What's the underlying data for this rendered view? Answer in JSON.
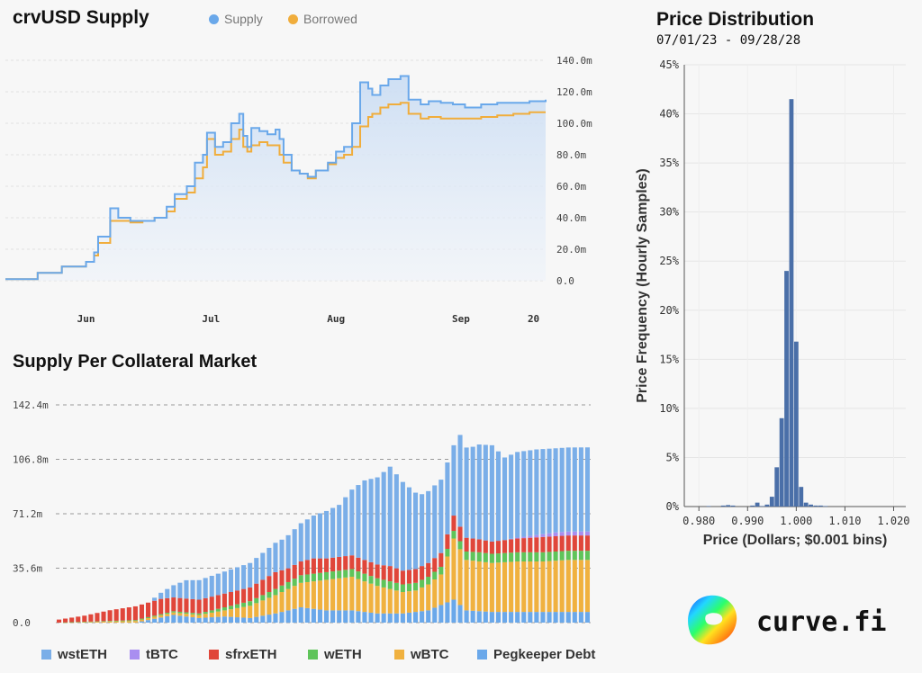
{
  "supply_chart": {
    "title": "crvUSD Supply",
    "legend": [
      {
        "name": "Supply",
        "color": "#6aa8ea"
      },
      {
        "name": "Borrowed",
        "color": "#f0ad3c"
      }
    ]
  },
  "market_chart": {
    "title": "Supply Per Collateral Market",
    "legend": [
      {
        "name": "wstETH",
        "color": "#7aaee8"
      },
      {
        "name": "tBTC",
        "color": "#a98ef0"
      },
      {
        "name": "sfrxETH",
        "color": "#e0463a"
      },
      {
        "name": "wETH",
        "color": "#5fc45a"
      },
      {
        "name": "wBTC",
        "color": "#f0b13f"
      },
      {
        "name": "Pegkeeper Debt",
        "color": "#6aa8ea"
      }
    ]
  },
  "price_chart": {
    "title": "Price Distribution",
    "subtitle": "07/01/23 - 09/28/28"
  },
  "brand": {
    "text": "curve.fi"
  },
  "chart_data": [
    {
      "type": "area",
      "title": "crvUSD Supply",
      "x_ticks": [
        "Jun",
        "Jul",
        "Aug",
        "Sep",
        "20"
      ],
      "y_ticks": [
        "0.0",
        "20.0m",
        "40.0m",
        "60.0m",
        "80.0m",
        "100.0m",
        "120.0m",
        "140.0m"
      ],
      "ylim": [
        0,
        140
      ],
      "y_unit": "millions",
      "x_days": [
        0,
        8,
        14,
        20,
        22,
        23,
        26,
        28,
        31,
        34,
        37,
        40,
        42,
        45,
        47,
        49,
        50,
        52,
        54,
        56,
        58,
        59,
        60,
        61,
        63,
        65,
        67,
        68,
        69,
        71,
        73,
        75,
        77,
        80,
        82,
        84,
        86,
        88,
        90,
        91,
        93,
        95,
        98,
        100,
        103,
        105,
        108,
        111,
        114,
        118,
        122,
        126,
        130,
        134
      ],
      "series": [
        {
          "name": "Supply",
          "values": [
            1,
            5,
            9,
            12,
            18,
            28,
            46,
            40,
            38,
            38,
            40,
            47,
            55,
            60,
            75,
            80,
            94,
            85,
            88,
            100,
            106,
            92,
            85,
            97,
            95,
            93,
            96,
            90,
            80,
            70,
            68,
            66,
            70,
            75,
            82,
            85,
            100,
            126,
            122,
            118,
            124,
            128,
            130,
            115,
            112,
            114,
            113,
            112,
            110,
            112,
            113,
            113,
            114,
            115
          ]
        },
        {
          "name": "Borrowed",
          "values": [
            1,
            5,
            9,
            12,
            16,
            24,
            38,
            38,
            37,
            38,
            40,
            44,
            52,
            56,
            65,
            72,
            90,
            80,
            82,
            90,
            96,
            85,
            82,
            86,
            88,
            86,
            86,
            80,
            75,
            70,
            68,
            65,
            70,
            74,
            78,
            80,
            85,
            98,
            104,
            106,
            110,
            112,
            113,
            106,
            103,
            104,
            103,
            103,
            103,
            104,
            105,
            106,
            107,
            107
          ]
        }
      ]
    },
    {
      "type": "bar",
      "stacked": true,
      "title": "Supply Per Collateral Market",
      "y_ticks": [
        "0.0",
        "35.6m",
        "71.2m",
        "106.8m",
        "142.4m"
      ],
      "ylim": [
        0,
        142.4
      ],
      "y_unit": "millions",
      "bar_count": 84,
      "series": [
        {
          "name": "wstETH",
          "key_days": [
            0,
            14,
            16,
            20,
            30,
            35,
            38,
            44,
            46,
            48,
            50,
            52,
            54,
            56,
            57,
            58,
            60,
            62,
            63,
            64,
            65,
            66,
            68,
            70,
            72,
            75,
            78,
            80,
            83
          ],
          "values": [
            0,
            0,
            4,
            12,
            16,
            20,
            25,
            34,
            43,
            52,
            57,
            65,
            58,
            50,
            47,
            47,
            48,
            46,
            60,
            59,
            60,
            62,
            63,
            54,
            56,
            56,
            55,
            55,
            55
          ]
        },
        {
          "name": "tBTC",
          "key_days": [
            0,
            70,
            74,
            78,
            83
          ],
          "values": [
            0,
            0,
            1.2,
            2.5,
            2.6
          ]
        },
        {
          "name": "sfrxETH",
          "key_days": [
            0,
            4,
            8,
            12,
            16,
            18,
            22,
            26,
            28,
            30,
            32,
            34,
            36,
            38,
            40,
            42,
            44,
            46,
            48,
            50,
            52,
            54,
            56,
            58,
            60,
            62,
            64,
            68,
            72,
            76,
            80,
            83
          ],
          "values": [
            2,
            4,
            7,
            9,
            10,
            9,
            9,
            9,
            9,
            9,
            10,
            11,
            9,
            9,
            10,
            9,
            9,
            9,
            9,
            9,
            10,
            9,
            9,
            9,
            9,
            10,
            9,
            8,
            9,
            10,
            10,
            10
          ]
        },
        {
          "name": "wETH",
          "key_days": [
            0,
            22,
            26,
            30,
            34,
            38,
            42,
            46,
            50,
            54,
            58,
            62,
            66,
            70,
            74,
            78,
            83
          ],
          "values": [
            0,
            1,
            2,
            3,
            4,
            5,
            5,
            5,
            5,
            5,
            5,
            5,
            6,
            6,
            6,
            6,
            6
          ]
        },
        {
          "name": "wBTC",
          "key_days": [
            0,
            22,
            26,
            30,
            34,
            38,
            42,
            46,
            50,
            52,
            54,
            56,
            58,
            60,
            62,
            64,
            68,
            72,
            76,
            80,
            83
          ],
          "values": [
            0,
            2,
            4,
            8,
            12,
            16,
            20,
            22,
            18,
            16,
            14,
            14,
            17,
            20,
            40,
            33,
            32,
            33,
            33,
            34,
            34
          ]
        },
        {
          "name": "Pegkeeper Debt",
          "key_days": [
            0,
            12,
            18,
            22,
            26,
            30,
            34,
            38,
            42,
            46,
            50,
            54,
            58,
            62,
            64,
            68,
            83
          ],
          "values": [
            0,
            0,
            5,
            3,
            4,
            3,
            6,
            10,
            8,
            8,
            6,
            6,
            8,
            15,
            8,
            7,
            7
          ]
        }
      ]
    },
    {
      "type": "bar",
      "title": "Price Distribution",
      "subtitle": "07/01/23 - 09/28/28",
      "xlabel": "Price (Dollars; $0.001 bins)",
      "ylabel": "Price Frequency (Hourly Samples)",
      "x_ticks": [
        "0.980",
        "0.990",
        "1.000",
        "1.010",
        "1.020"
      ],
      "y_ticks": [
        "0%",
        "5%",
        "10%",
        "15%",
        "20%",
        "25%",
        "30%",
        "35%",
        "40%",
        "45%"
      ],
      "xlim": [
        0.977,
        1.0225
      ],
      "ylim": [
        0,
        45
      ],
      "bin_width": 0.001,
      "bins": [
        0.982,
        0.985,
        0.986,
        0.987,
        0.991,
        0.992,
        0.993,
        0.994,
        0.995,
        0.996,
        0.997,
        0.998,
        0.999,
        1.0,
        1.001,
        1.002,
        1.003,
        1.004,
        1.005,
        1.006
      ],
      "values": [
        0.05,
        0.1,
        0.15,
        0.1,
        0.1,
        0.4,
        0.05,
        0.2,
        1.0,
        4.0,
        9.0,
        24.0,
        41.5,
        16.8,
        2.0,
        0.4,
        0.2,
        0.1,
        0.1,
        0.05
      ]
    }
  ]
}
